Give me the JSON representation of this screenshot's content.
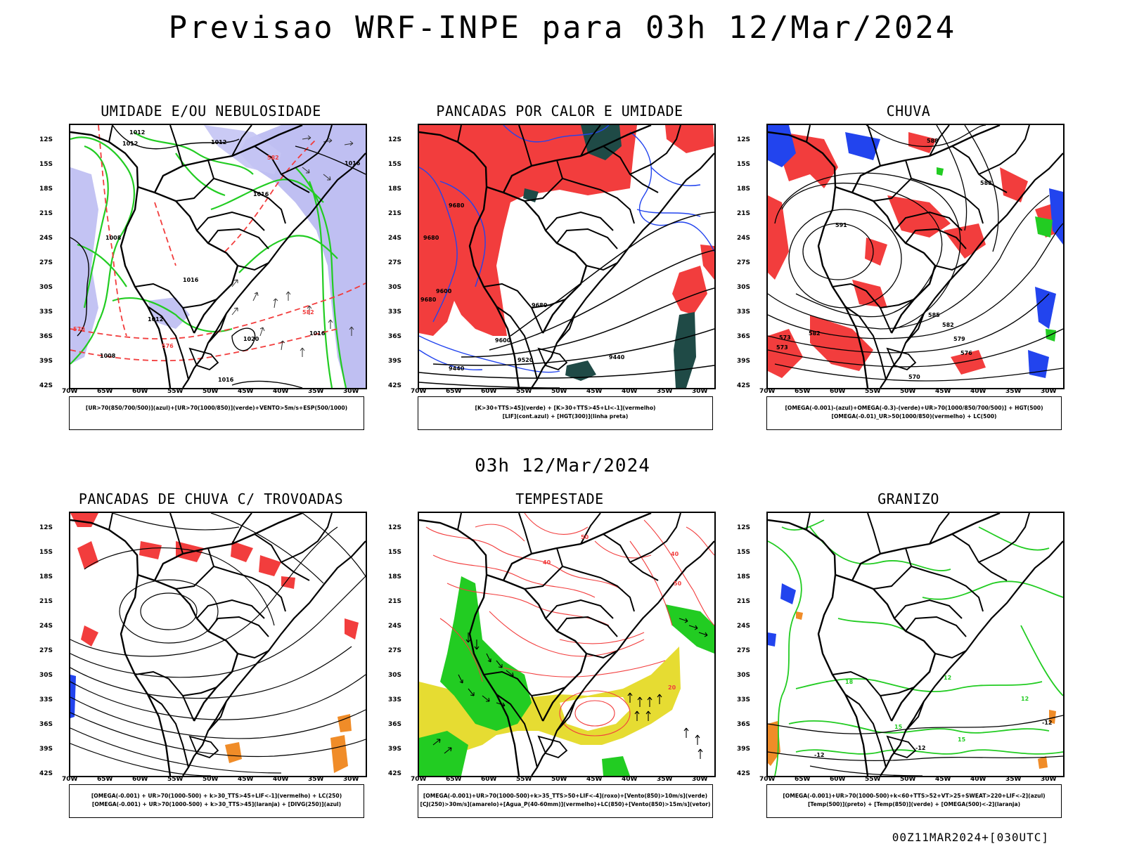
{
  "title": "Previsao WRF-INPE  para 03h 12/Mar/2024",
  "mid_title": "03h 12/Mar/2024",
  "footer": "00Z11MAR2024+[030UTC]",
  "lat_ticks": [
    "12S",
    "15S",
    "18S",
    "21S",
    "24S",
    "27S",
    "30S",
    "33S",
    "36S",
    "39S",
    "42S"
  ],
  "lon_ticks": [
    "70W",
    "65W",
    "60W",
    "55W",
    "50W",
    "45W",
    "40W",
    "35W",
    "30W"
  ],
  "colors": {
    "red": "#f23d3d",
    "green": "#22cc22",
    "blue": "#2244ee",
    "lightblue": "#b4b4f0",
    "yellow": "#e6dc32",
    "darkteal": "#1f4a46",
    "orange": "#f08c28",
    "black": "#000000"
  },
  "panels": [
    {
      "id": "umidade",
      "title": "UMIDADE E/OU NEBULOSIDADE",
      "legend": [
        "[UR>70(850/700/500)](azul)+[UR>70(1000/850)](verde)+VENTO>5m/s+ESP(500/1000)"
      ],
      "contour_labels": [
        "1012",
        "1012",
        "1012",
        "1016",
        "1016",
        "1008",
        "1012",
        "1016",
        "1020",
        "1016",
        "1008",
        "1016",
        "570",
        "576",
        "582",
        "582"
      ]
    },
    {
      "id": "pancadas-calor",
      "title": "PANCADAS POR CALOR E UMIDADE",
      "legend": [
        "[K>30+TTS>45](verde) + [K>30+TTS>45+LI<-1](vermelho)",
        "[LIF](cont.azul) + [HGT(300)](linha preta)"
      ],
      "contour_labels": [
        "9680",
        "9680",
        "9600",
        "9680",
        "9680",
        "9600",
        "9520",
        "9440",
        "9440"
      ]
    },
    {
      "id": "chuva",
      "title": "CHUVA",
      "legend": [
        "[OMEGA(-0.001)-(azul)+OMEGA(-0.3)-(verde)+UR>70(1000/850/700/500)] + HGT(500)",
        "[OMEGA(-0.01)_UR>50(1000/850)(vermelho) + LC(500)"
      ],
      "contour_labels": [
        "588",
        "591",
        "585",
        "588",
        "582",
        "579",
        "576",
        "573",
        "570",
        "573",
        "582"
      ]
    },
    {
      "id": "pancadas-trovoadas",
      "title": "PANCADAS DE CHUVA C/ TROVOADAS",
      "legend": [
        "[OMEGA(-0.001) + UR>70(1000-500) + k>30_TTS>45+LIF<-1](vermelho) + LC(250)",
        "[OMEGA(-0.001) + UR>70(1000-500) + k>30_TTS>45](laranja) + [DIVG(250)](azul)"
      ],
      "contour_labels": []
    },
    {
      "id": "tempestade",
      "title": "TEMPESTADE",
      "legend": [
        "[OMEGA(-0.001)+UR>70(1000-500)+k>35_TTS>50+LIF<-4](roxo)+[Vento(850)>10m/s](verde)",
        "[CJ(250)>30m/s](amarelo)+[Agua_P(40-60mm)](vermelho)+LC(850)+[Vento(850)>15m/s](vetor)"
      ],
      "contour_labels": [
        "40",
        "50",
        "40",
        "50",
        "20"
      ]
    },
    {
      "id": "granizo",
      "title": "GRANIZO",
      "legend": [
        "[OMEGA(-0.001)+UR>70(1000-500)+k<60+TTS>52+VT>25+SWEAT>220+LIF<-2](azul)",
        "[Temp(500)](preto) + [Temp(850)](verde) + [OMEGA(500)<-2](laranja)"
      ],
      "contour_labels": [
        "-12",
        "-12",
        "-12",
        "12",
        "12",
        "15",
        "15",
        "18"
      ]
    }
  ]
}
